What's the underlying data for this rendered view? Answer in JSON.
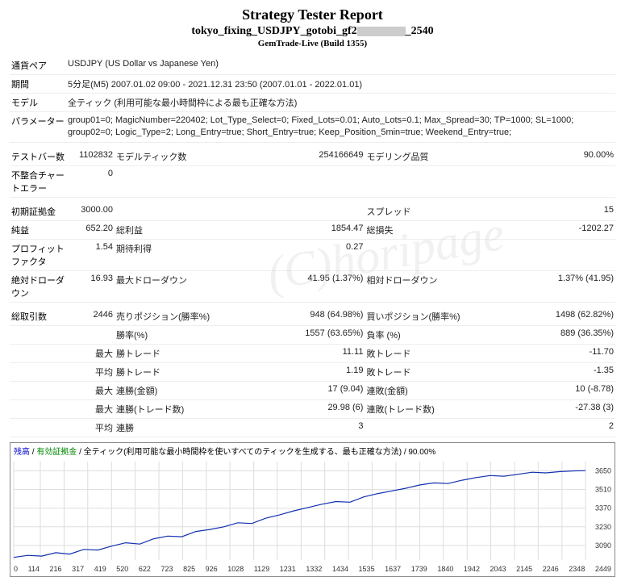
{
  "header": {
    "title": "Strategy Tester Report",
    "subtitle_prefix": "tokyo_fixing_USDJPY_gotobi_gf2",
    "subtitle_suffix": "_2540",
    "build": "GemTrade-Live (Build 1355)"
  },
  "info": {
    "pair_label": "通貨ペア",
    "pair_value": "USDJPY (US Dollar vs Japanese Yen)",
    "period_label": "期間",
    "period_value": "5分足(M5) 2007.01.02 09:00 - 2021.12.31 23:50 (2007.01.01 - 2022.01.01)",
    "model_label": "モデル",
    "model_value": "全ティック (利用可能な最小時間枠による最も正確な方法)",
    "param_label": "パラメーター",
    "param_value": "group01=0; MagicNumber=220402; Lot_Type_Select=0; Fixed_Lots=0.01; Auto_Lots=0.1; Max_Spread=30; TP=1000; SL=1000; group02=0; Logic_Type=2; Long_Entry=true; Short_Entry=true; Keep_Position_5min=true; Weekend_Entry=true;"
  },
  "stats": {
    "bars_label": "テストバー数",
    "bars_value": "1102832",
    "ticks_label": "モデルティック数",
    "ticks_value": "254166649",
    "quality_label": "モデリング品質",
    "quality_value": "90.00%",
    "mismatch_label": "不整合チャートエラー",
    "mismatch_value": "0",
    "deposit_label": "初期証拠金",
    "deposit_value": "3000.00",
    "spread_label": "スプレッド",
    "spread_value": "15",
    "netprofit_label": "純益",
    "netprofit_value": "652.20",
    "grossprofit_label": "総利益",
    "grossprofit_value": "1854.47",
    "grossloss_label": "総損失",
    "grossloss_value": "-1202.27",
    "pf_label": "プロフィットファクタ",
    "pf_value": "1.54",
    "expected_label": "期待利得",
    "expected_value": "0.27",
    "absdd_label": "絶対ドローダウン",
    "absdd_value": "16.93",
    "maxdd_label": "最大ドローダウン",
    "maxdd_value": "41.95 (1.37%)",
    "reldd_label": "相対ドローダウン",
    "reldd_value": "1.37% (41.95)",
    "total_label": "総取引数",
    "total_value": "2446",
    "short_label": "売りポジション(勝率%)",
    "short_value": "948 (64.98%)",
    "long_label": "買いポジション(勝率%)",
    "long_value": "1498 (62.82%)",
    "winrate_label": "勝率(%)",
    "winrate_value": "1557 (63.65%)",
    "lossrate_label": "負率 (%)",
    "lossrate_value": "889 (36.35%)",
    "maxwin_pre": "最大",
    "maxwin_label": "勝トレード",
    "maxwin_value": "11.11",
    "maxloss_label": "敗トレード",
    "maxloss_value": "-11.70",
    "avgwin_pre": "平均",
    "avgwin_label": "勝トレード",
    "avgwin_value": "1.19",
    "avgloss_label": "敗トレード",
    "avgloss_value": "-1.35",
    "maxconwin_pre": "最大",
    "maxconwin_label": "連勝(金額)",
    "maxconwin_value": "17 (9.04)",
    "maxconloss_label": "連敗(金額)",
    "maxconloss_value": "10 (-8.78)",
    "maxconprofit_pre": "最大",
    "maxconprofit_label": "連勝(トレード数)",
    "maxconprofit_value": "29.98 (6)",
    "maxconloss2_label": "連敗(トレード数)",
    "maxconloss2_value": "-27.38 (3)",
    "avgcon_pre": "平均",
    "avgcon_label": "連勝",
    "avgcon_value": "3",
    "avgconloss_value": "2"
  },
  "chart": {
    "caption_balance": "残高",
    "caption_sep": " / ",
    "caption_equity": "有効証拠金",
    "caption_rest": " / 全ティック(利用可能な最小時間枠を使いすべてのティックを生成する、最も正確な方法) / 90.00%",
    "ylabels": [
      "3650",
      "3510",
      "3370",
      "3230",
      "3090"
    ],
    "xlabels": [
      "0",
      "114",
      "216",
      "317",
      "419",
      "520",
      "622",
      "723",
      "825",
      "926",
      "1028",
      "1129",
      "1231",
      "1332",
      "1434",
      "1535",
      "1637",
      "1739",
      "1840",
      "1942",
      "2043",
      "2145",
      "2246",
      "2348",
      "2449"
    ],
    "ymin": 2980,
    "ymax": 3720,
    "grid_color": "#dddddd",
    "line_color": "#1030b0",
    "points": [
      [
        0,
        3000
      ],
      [
        60,
        3015
      ],
      [
        120,
        3010
      ],
      [
        180,
        3035
      ],
      [
        240,
        3025
      ],
      [
        300,
        3060
      ],
      [
        360,
        3055
      ],
      [
        420,
        3085
      ],
      [
        480,
        3110
      ],
      [
        540,
        3100
      ],
      [
        600,
        3140
      ],
      [
        660,
        3160
      ],
      [
        720,
        3155
      ],
      [
        780,
        3195
      ],
      [
        840,
        3210
      ],
      [
        900,
        3230
      ],
      [
        960,
        3260
      ],
      [
        1020,
        3255
      ],
      [
        1080,
        3295
      ],
      [
        1140,
        3320
      ],
      [
        1200,
        3350
      ],
      [
        1260,
        3375
      ],
      [
        1320,
        3400
      ],
      [
        1380,
        3420
      ],
      [
        1440,
        3415
      ],
      [
        1500,
        3455
      ],
      [
        1560,
        3480
      ],
      [
        1620,
        3500
      ],
      [
        1680,
        3520
      ],
      [
        1740,
        3545
      ],
      [
        1800,
        3560
      ],
      [
        1860,
        3555
      ],
      [
        1920,
        3580
      ],
      [
        1980,
        3600
      ],
      [
        2040,
        3615
      ],
      [
        2100,
        3610
      ],
      [
        2160,
        3625
      ],
      [
        2220,
        3640
      ],
      [
        2280,
        3635
      ],
      [
        2340,
        3645
      ],
      [
        2400,
        3650
      ],
      [
        2449,
        3652
      ]
    ]
  }
}
